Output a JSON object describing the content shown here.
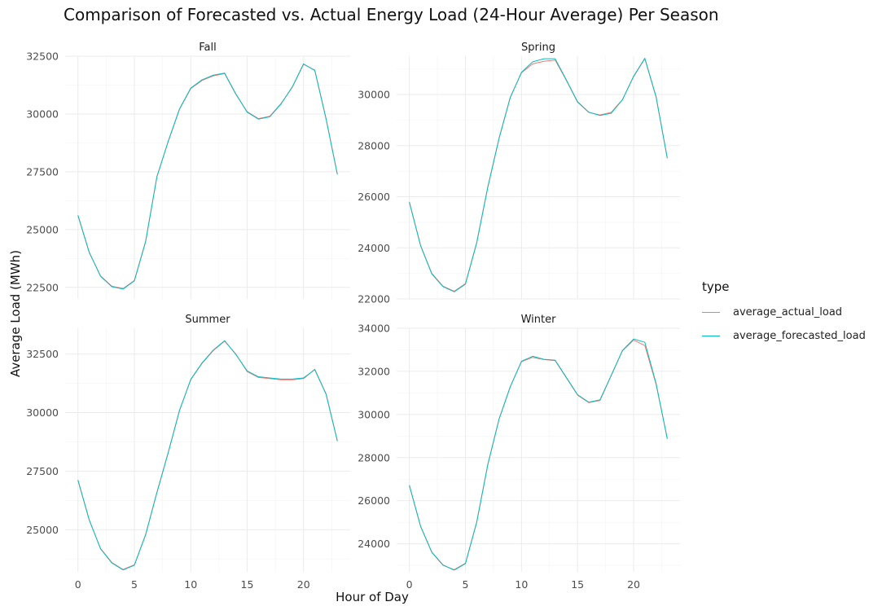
{
  "title": "Comparison of Forecasted vs. Actual Energy Load (24-Hour Average) Per Season",
  "colors": {
    "actual": "#F8766D",
    "forecast": "#00BFC4",
    "grid": "#ebebeb",
    "text": "#4d4d4d"
  },
  "legend": {
    "title": "type",
    "items": [
      {
        "label": "average_actual_load",
        "color": "#F8766D"
      },
      {
        "label": "average_forecasted_load",
        "color": "#00BFC4"
      }
    ]
  },
  "chart_data": {
    "type": "line",
    "title": "Comparison of Forecasted vs. Actual Energy Load (24-Hour Average) Per Season",
    "xlabel": "Hour of Day",
    "ylabel": "Average Load (MWh)",
    "legend_title": "type",
    "legend_position": "right",
    "grid": true,
    "xlim": [
      0,
      23
    ],
    "xticks": [
      0,
      5,
      10,
      15,
      20
    ],
    "panels": [
      {
        "name": "Fall",
        "ylim": [
          22000,
          32500
        ],
        "yticks": [
          22500,
          25000,
          27500,
          30000,
          32500
        ],
        "series": [
          {
            "name": "average_actual_load",
            "values": [
              25600,
              24000,
              23000,
              22550,
              22450,
              22800,
              24500,
              27300,
              28800,
              30200,
              31100,
              31450,
              31650,
              31750,
              30850,
              30100,
              29800,
              29900,
              30450,
              31150,
              32150,
              31900,
              29800,
              27400
            ]
          },
          {
            "name": "average_forecasted_load",
            "values": [
              25620,
              24020,
              22980,
              22530,
              22430,
              22780,
              24480,
              27280,
              28820,
              30220,
              31120,
              31480,
              31680,
              31770,
              30870,
              30080,
              29780,
              29880,
              30430,
              31170,
              32170,
              31880,
              29780,
              27380
            ]
          }
        ]
      },
      {
        "name": "Spring",
        "ylim": [
          22000,
          31500
        ],
        "yticks": [
          22000,
          24000,
          26000,
          28000,
          30000
        ],
        "series": [
          {
            "name": "average_actual_load",
            "values": [
              25800,
              24100,
              23000,
              22500,
              22300,
              22600,
              24200,
              26400,
              28300,
              29900,
              30850,
              31200,
              31300,
              31350,
              30550,
              29700,
              29300,
              29200,
              29300,
              29800,
              30700,
              31400,
              29900,
              27500
            ]
          },
          {
            "name": "average_forecasted_load",
            "values": [
              25780,
              24080,
              22980,
              22480,
              22280,
              22580,
              24180,
              26380,
              28280,
              29880,
              30870,
              31280,
              31400,
              31400,
              30570,
              29720,
              29310,
              29180,
              29270,
              29790,
              30720,
              31420,
              29920,
              27520
            ]
          }
        ]
      },
      {
        "name": "Summer",
        "ylim": [
          23200,
          33600
        ],
        "yticks": [
          25000,
          27500,
          30000,
          32500
        ],
        "series": [
          {
            "name": "average_actual_load",
            "values": [
              27100,
              25400,
              24200,
              23600,
              23300,
              23500,
              24800,
              26600,
              28300,
              30100,
              31400,
              32100,
              32650,
              33050,
              32500,
              31750,
              31500,
              31450,
              31400,
              31400,
              31450,
              31850,
              30800,
              28800
            ]
          },
          {
            "name": "average_forecasted_load",
            "values": [
              27120,
              25420,
              24180,
              23580,
              23280,
              23480,
              24780,
              26580,
              28280,
              30080,
              31420,
              32120,
              32670,
              33070,
              32480,
              31780,
              31530,
              31480,
              31430,
              31430,
              31480,
              31830,
              30780,
              28780
            ]
          }
        ]
      },
      {
        "name": "Winter",
        "ylim": [
          22700,
          34000
        ],
        "yticks": [
          24000,
          26000,
          28000,
          30000,
          32000,
          34000
        ],
        "series": [
          {
            "name": "average_actual_load",
            "values": [
              26700,
              24800,
              23600,
              23000,
              22800,
              23100,
              25000,
              27700,
              29800,
              31300,
              32450,
              32650,
              32550,
              32500,
              31700,
              30900,
              30550,
              30650,
              31800,
              32950,
              33450,
              33200,
              31400,
              28900
            ]
          },
          {
            "name": "average_forecasted_load",
            "values": [
              26720,
              24820,
              23620,
              23020,
              22780,
              23080,
              24980,
              27680,
              29780,
              31280,
              32470,
              32700,
              32560,
              32520,
              31720,
              30920,
              30570,
              30680,
              31820,
              32970,
              33500,
              33350,
              31450,
              28870
            ]
          }
        ]
      }
    ]
  }
}
